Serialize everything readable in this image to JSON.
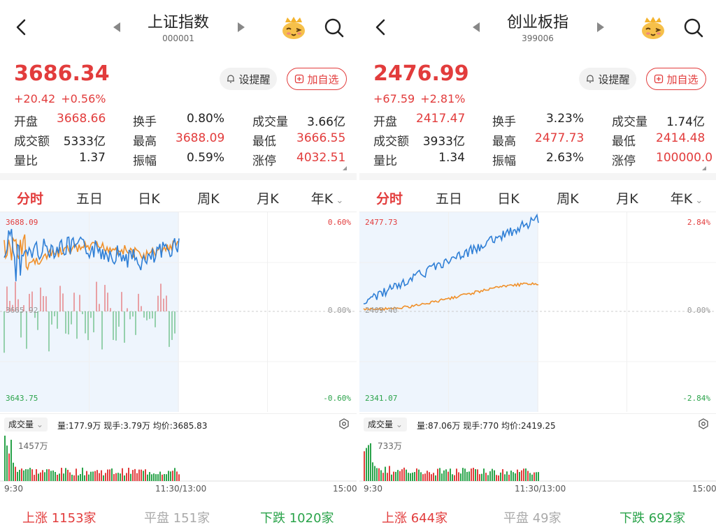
{
  "panels": [
    {
      "title": "上证指数",
      "code": "000001",
      "price": "3686.34",
      "change": "+20.42",
      "change_pct": "+0.56%",
      "alert_label": "设提醒",
      "add_label": "加自选",
      "stats": [
        [
          {
            "label": "开盘",
            "value": "3668.66",
            "color": "red"
          },
          {
            "label": "换手",
            "value": "0.80%",
            "color": "black"
          },
          {
            "label": "成交量",
            "value": "3.66亿",
            "color": "black"
          }
        ],
        [
          {
            "label": "成交额",
            "value": "5333亿",
            "color": "black"
          },
          {
            "label": "最高",
            "value": "3688.09",
            "color": "red"
          },
          {
            "label": "最低",
            "value": "3666.55",
            "color": "red"
          }
        ],
        [
          {
            "label": "量比",
            "value": "1.37",
            "color": "black"
          },
          {
            "label": "振幅",
            "value": "0.59%",
            "color": "black"
          },
          {
            "label": "涨停",
            "value": "4032.51",
            "color": "red"
          }
        ]
      ],
      "tabs": [
        "分时",
        "五日",
        "日K",
        "周K",
        "月K",
        "年K"
      ],
      "chart": {
        "y_high": "3688.09",
        "y_mid": "3665.92",
        "y_low": "3643.75",
        "pct_high": "0.60%",
        "pct_mid": "0.00%",
        "pct_low": "-0.60%"
      },
      "volume_selector": "成交量",
      "volume_info": "量:177.9万  现手:3.79万  均价:3685.83",
      "volume_max": "1457万",
      "time_start": "9:30",
      "time_mid": "11:30/13:00",
      "time_end": "15:00",
      "breadth": {
        "up_label": "上涨",
        "up_count": "1153家",
        "flat_label": "平盘",
        "flat_count": "151家",
        "down_label": "下跌",
        "down_count": "1020家"
      }
    },
    {
      "title": "创业板指",
      "code": "399006",
      "price": "2476.99",
      "change": "+67.59",
      "change_pct": "+2.81%",
      "alert_label": "设提醒",
      "add_label": "加自选",
      "stats": [
        [
          {
            "label": "开盘",
            "value": "2417.47",
            "color": "red"
          },
          {
            "label": "换手",
            "value": "3.23%",
            "color": "black"
          },
          {
            "label": "成交量",
            "value": "1.74亿",
            "color": "black"
          }
        ],
        [
          {
            "label": "成交额",
            "value": "3933亿",
            "color": "black"
          },
          {
            "label": "最高",
            "value": "2477.73",
            "color": "red"
          },
          {
            "label": "最低",
            "value": "2414.48",
            "color": "red"
          }
        ],
        [
          {
            "label": "量比",
            "value": "1.34",
            "color": "black"
          },
          {
            "label": "振幅",
            "value": "2.63%",
            "color": "black"
          },
          {
            "label": "涨停",
            "value": "100000.0",
            "color": "red"
          }
        ]
      ],
      "tabs": [
        "分时",
        "五日",
        "日K",
        "周K",
        "月K",
        "年K"
      ],
      "chart": {
        "y_high": "2477.73",
        "y_mid": "2409.40",
        "y_low": "2341.07",
        "pct_high": "2.84%",
        "pct_mid": "0.00%",
        "pct_low": "-2.84%"
      },
      "volume_selector": "成交量",
      "volume_info": "量:87.06万  现手:770  均价:2419.25",
      "volume_max": "733万",
      "time_start": "9:30",
      "time_mid": "11:30/13:00",
      "time_end": "15:00",
      "breadth": {
        "up_label": "上涨",
        "up_count": "644家",
        "flat_label": "平盘",
        "flat_count": "49家",
        "down_label": "下跌",
        "down_count": "692家"
      }
    }
  ],
  "colors": {
    "up": "#e23c3c",
    "down": "#2aa34a",
    "price_line": "#2f7fd6",
    "avg_line": "#f0902a"
  }
}
